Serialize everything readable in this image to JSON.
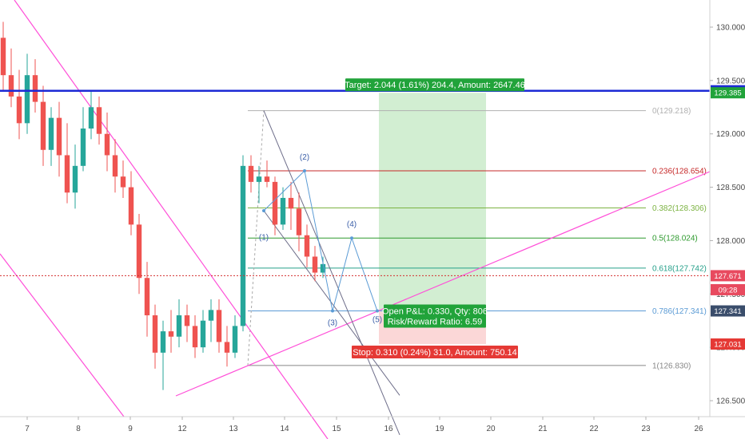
{
  "chart_data": {
    "type": "candlestick",
    "x_axis": {
      "tick_labels": [
        "7",
        "8",
        "9",
        "12",
        "13",
        "14",
        "15",
        "16",
        "19",
        "20",
        "21",
        "22",
        "23",
        "26"
      ]
    },
    "y_axis": {
      "tick_labels": [
        "130.000",
        "129.500",
        "129.000",
        "128.500",
        "128.000",
        "127.500",
        "127.000",
        "126.500"
      ],
      "range": [
        126.36,
        130.22
      ]
    },
    "candles": [
      [
        129.9,
        130.05,
        129.4,
        129.55
      ],
      [
        129.55,
        129.8,
        129.25,
        129.35
      ],
      [
        129.35,
        129.6,
        128.95,
        129.1
      ],
      [
        129.1,
        129.75,
        129.0,
        129.55
      ],
      [
        129.55,
        129.7,
        129.2,
        129.3
      ],
      [
        129.3,
        129.45,
        128.7,
        128.85
      ],
      [
        128.85,
        129.25,
        128.7,
        129.15
      ],
      [
        129.15,
        129.3,
        128.6,
        128.8
      ],
      [
        128.8,
        129.1,
        128.35,
        128.45
      ],
      [
        128.45,
        128.9,
        128.3,
        128.7
      ],
      [
        128.7,
        129.25,
        128.65,
        129.05
      ],
      [
        129.05,
        129.4,
        128.95,
        129.25
      ],
      [
        129.25,
        129.35,
        128.9,
        129.0
      ],
      [
        129.0,
        129.2,
        128.65,
        128.8
      ],
      [
        128.8,
        128.95,
        128.45,
        128.6
      ],
      [
        128.6,
        128.75,
        128.4,
        128.5
      ],
      [
        128.5,
        128.65,
        128.05,
        128.15
      ],
      [
        128.15,
        128.25,
        127.5,
        127.65
      ],
      [
        127.65,
        127.8,
        127.1,
        127.3
      ],
      [
        127.3,
        127.4,
        126.8,
        126.95
      ],
      [
        126.95,
        127.25,
        126.6,
        127.15
      ],
      [
        127.15,
        127.35,
        126.95,
        127.1
      ],
      [
        127.1,
        127.45,
        127.0,
        127.3
      ],
      [
        127.3,
        127.4,
        127.05,
        127.2
      ],
      [
        127.2,
        127.3,
        126.9,
        127.0
      ],
      [
        127.0,
        127.35,
        126.95,
        127.25
      ],
      [
        127.25,
        127.45,
        127.05,
        127.35
      ],
      [
        127.35,
        127.45,
        126.95,
        127.05
      ],
      [
        127.05,
        127.2,
        126.82,
        126.95
      ],
      [
        126.95,
        127.3,
        126.9,
        127.2
      ],
      [
        127.2,
        128.8,
        127.15,
        128.7
      ],
      [
        128.7,
        128.8,
        128.45,
        128.55
      ],
      [
        128.55,
        128.7,
        128.35,
        128.6
      ],
      [
        128.6,
        128.75,
        128.5,
        128.55
      ],
      [
        128.55,
        128.6,
        128.05,
        128.15
      ],
      [
        128.15,
        128.5,
        128.1,
        128.4
      ],
      [
        128.4,
        128.55,
        128.1,
        128.3
      ],
      [
        128.3,
        128.45,
        127.9,
        128.05
      ],
      [
        128.05,
        128.15,
        127.75,
        127.85
      ],
      [
        127.85,
        127.95,
        127.62,
        127.7
      ],
      [
        127.7,
        127.85,
        127.65,
        127.78
      ]
    ],
    "price_lines": [
      {
        "label": "129.404",
        "value": 129.404,
        "color": "#1c2ad6"
      },
      {
        "label": "127.671",
        "value": 127.671,
        "color": "#d32f2f"
      }
    ],
    "axis_badges": [
      {
        "label": "129.404",
        "value": 129.404,
        "color": "#1c2ad6"
      },
      {
        "label": "129.385",
        "value": 129.385,
        "color": "#21a33a"
      },
      {
        "label": "127.671",
        "value": 127.671,
        "color": "#e84a5f"
      },
      {
        "label": "09:28",
        "value": 127.54,
        "color": "#e84a5f"
      },
      {
        "label": "127.341",
        "value": 127.341,
        "color": "#3a4d6b"
      },
      {
        "label": "127.031",
        "value": 127.031,
        "color": "#e53935"
      }
    ],
    "fibonacci": [
      {
        "label": "0(129.218)",
        "value": 129.218,
        "color": "#b0b0b0"
      },
      {
        "label": "0.236(128.654)",
        "value": 128.654,
        "color": "#c62828"
      },
      {
        "label": "0.382(128.306)",
        "value": 128.306,
        "color": "#7cb342"
      },
      {
        "label": "0.5(128.024)",
        "value": 128.024,
        "color": "#2e9a2e"
      },
      {
        "label": "0.618(127.742)",
        "value": 127.742,
        "color": "#26a08a"
      },
      {
        "label": "0.786(127.341)",
        "value": 127.341,
        "color": "#5b9bd5"
      },
      {
        "label": "1(126.830)",
        "value": 126.83,
        "color": "#888888"
      }
    ],
    "position": {
      "target_label": "Target: 2.044 (1.61%) 204.4, Amount: 2647.46",
      "stop_label": "Stop: 0.310 (0.24%) 31.0, Amount: 750.14",
      "pnl_label": "Open P&L: 0.330, Qty: 806",
      "ratio_label": "Risk/Reward Ratio: 6.59",
      "entry": 127.341,
      "target": 129.385,
      "stop": 127.031
    },
    "waves": [
      "(1)",
      "(2)",
      "(3)",
      "(4)",
      "(5)"
    ],
    "colors": {
      "up": "#26a69a",
      "down": "#ef5350",
      "trendline": "#ff4fd8",
      "target_zone": "#cdeccd",
      "stop_zone": "#fbd3d3"
    }
  }
}
